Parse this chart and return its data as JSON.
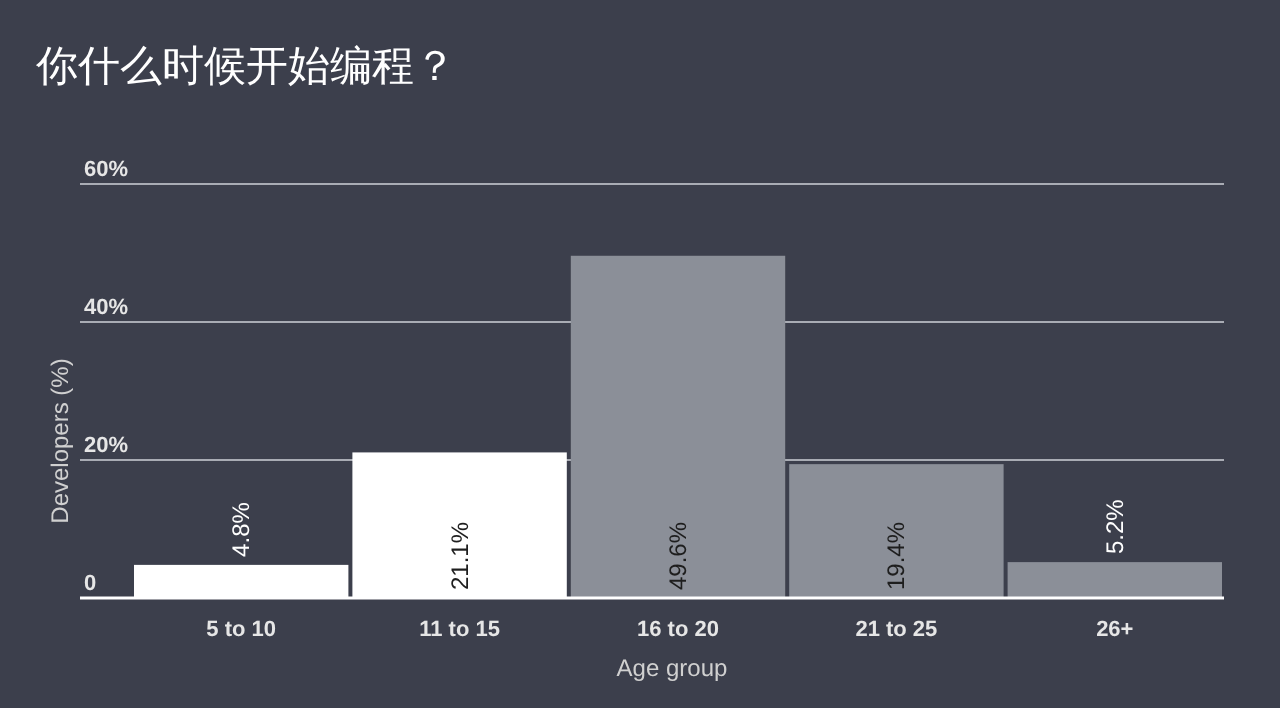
{
  "chart_data": {
    "type": "bar",
    "title": "你什么时候开始编程？",
    "xlabel": "Age group",
    "ylabel": "Developers (%)",
    "categories": [
      "5 to 10",
      "11 to 15",
      "16 to 20",
      "21 to 25",
      "26+"
    ],
    "values": [
      4.8,
      21.1,
      49.6,
      19.4,
      5.2
    ],
    "colors": [
      "#ffffff",
      "#ffffff",
      "#8b8f98",
      "#8b8f98",
      "#8b8f98"
    ],
    "value_labels": [
      "4.8%",
      "21.1%",
      "49.6%",
      "19.4%",
      "5.2%"
    ],
    "ylim": [
      0,
      60
    ],
    "yticks": [
      0,
      {
        "value": 20,
        "label": "20%"
      },
      {
        "value": 40,
        "label": "40%"
      },
      {
        "value": 60,
        "label": "60%"
      }
    ],
    "grid": "y"
  }
}
